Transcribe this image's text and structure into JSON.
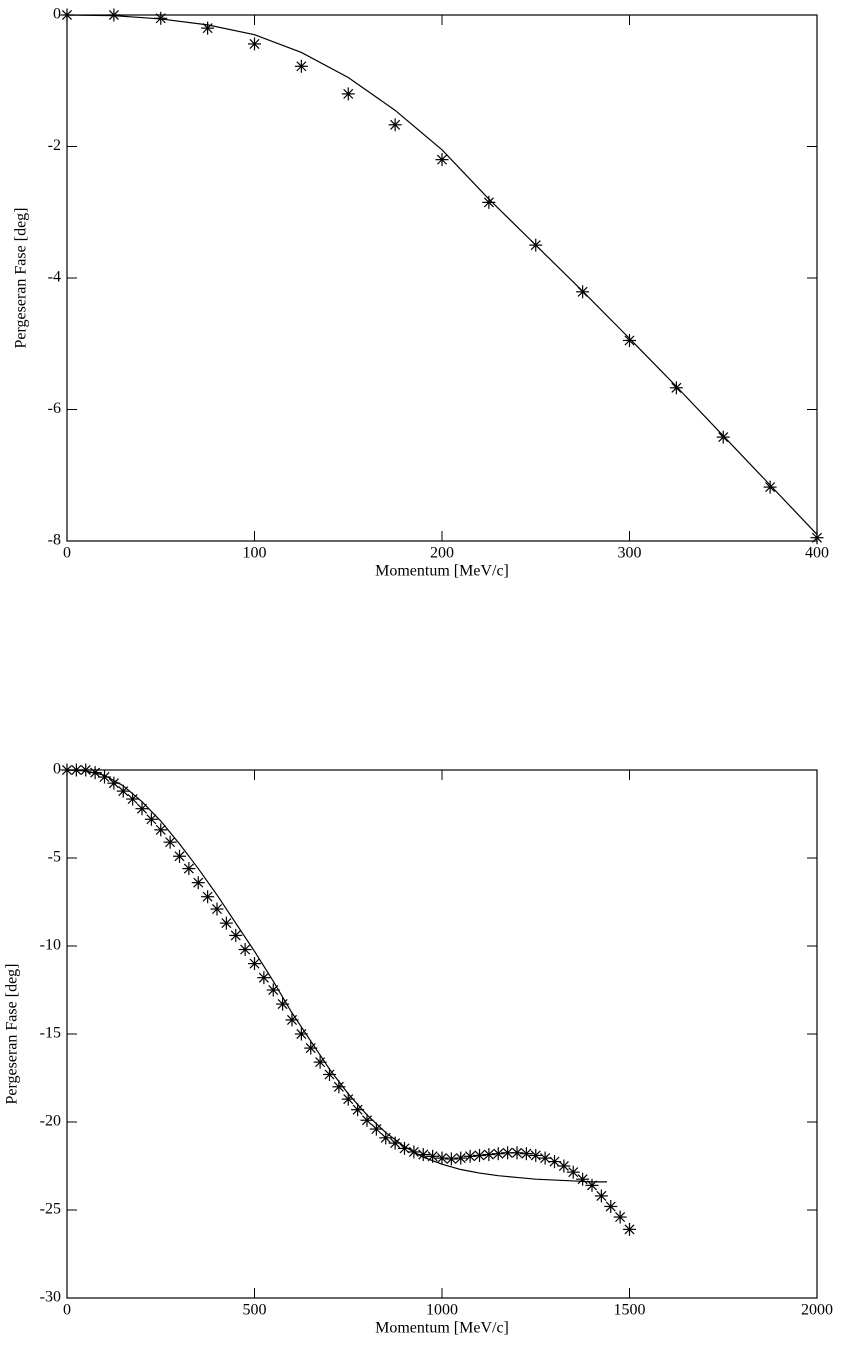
{
  "chart_data": [
    {
      "type": "line",
      "xlabel": "Momentum [MeV/c]",
      "ylabel": "Pergeseran Fase [deg]",
      "xlim": [
        0,
        400
      ],
      "ylim": [
        -8,
        0
      ],
      "xticks": [
        0,
        100,
        200,
        300,
        400
      ],
      "yticks": [
        0,
        -2,
        -4,
        -6,
        -8
      ],
      "series": [
        {
          "mode": "markers",
          "marker": "asterisk",
          "color": "#000000",
          "x": [
            0,
            25,
            50,
            75,
            100,
            125,
            150,
            175,
            200,
            225,
            250,
            275,
            300,
            325,
            350,
            375,
            400
          ],
          "values": [
            0,
            0,
            -0.05,
            -0.2,
            -0.44,
            -0.78,
            -1.2,
            -1.67,
            -2.2,
            -2.85,
            -3.5,
            -4.21,
            -4.95,
            -5.67,
            -6.42,
            -7.18,
            -7.95
          ]
        },
        {
          "mode": "line",
          "color": "#000000",
          "x": [
            0,
            25,
            50,
            75,
            100,
            125,
            150,
            175,
            200,
            225,
            250,
            275,
            300,
            325,
            350,
            375,
            400
          ],
          "values": [
            0,
            -0.01,
            -0.06,
            -0.15,
            -0.3,
            -0.57,
            -0.95,
            -1.45,
            -2.05,
            -2.8,
            -3.5,
            -4.2,
            -4.92,
            -5.65,
            -6.4,
            -7.15,
            -7.9
          ]
        }
      ]
    },
    {
      "type": "line",
      "xlabel": "Momentum [MeV/c]",
      "ylabel": "Pergeseran Fase [deg]",
      "xlim": [
        0,
        2000
      ],
      "ylim": [
        -30,
        0
      ],
      "xticks": [
        0,
        500,
        1000,
        1500,
        2000
      ],
      "yticks": [
        0,
        -5,
        -10,
        -15,
        -20,
        -25,
        -30
      ],
      "series": [
        {
          "mode": "markers",
          "marker": "asterisk",
          "color": "#000000",
          "x": [
            0,
            25,
            50,
            75,
            100,
            125,
            150,
            175,
            200,
            225,
            250,
            275,
            300,
            325,
            350,
            375,
            400,
            425,
            450,
            475,
            500,
            525,
            550,
            575,
            600,
            625,
            650,
            675,
            700,
            725,
            750,
            775,
            800,
            825,
            850,
            875,
            900,
            925,
            950,
            975,
            1000,
            1025,
            1050,
            1075,
            1100,
            1125,
            1150,
            1175,
            1200,
            1225,
            1250,
            1275,
            1300,
            1325,
            1350,
            1375,
            1400,
            1425,
            1450,
            1475,
            1500
          ],
          "values": [
            0,
            0,
            0,
            -0.15,
            -0.4,
            -0.75,
            -1.2,
            -1.65,
            -2.2,
            -2.8,
            -3.4,
            -4.1,
            -4.9,
            -5.6,
            -6.4,
            -7.2,
            -7.9,
            -8.7,
            -9.4,
            -10.2,
            -11,
            -11.8,
            -12.5,
            -13.3,
            -14.2,
            -15,
            -15.8,
            -16.6,
            -17.3,
            -18,
            -18.7,
            -19.3,
            -19.9,
            -20.4,
            -20.9,
            -21.2,
            -21.5,
            -21.7,
            -21.85,
            -21.95,
            -22.05,
            -22.1,
            -22.05,
            -21.95,
            -21.9,
            -21.85,
            -21.8,
            -21.75,
            -21.75,
            -21.8,
            -21.9,
            -22.05,
            -22.25,
            -22.5,
            -22.85,
            -23.25,
            -23.6,
            -24.2,
            -24.8,
            -25.4,
            -26.1
          ]
        },
        {
          "mode": "line",
          "color": "#000000",
          "x": [
            0,
            50,
            100,
            150,
            200,
            250,
            300,
            350,
            400,
            450,
            500,
            550,
            600,
            650,
            700,
            750,
            800,
            850,
            900,
            950,
            1000,
            1050,
            1100,
            1150,
            1200,
            1250,
            1300,
            1350,
            1400,
            1440
          ],
          "values": [
            0,
            -0.05,
            -0.3,
            -0.9,
            -1.8,
            -2.9,
            -4.2,
            -5.6,
            -7.1,
            -8.7,
            -10.3,
            -12,
            -13.8,
            -15.4,
            -17,
            -18.4,
            -19.6,
            -20.6,
            -21.4,
            -22,
            -22.4,
            -22.7,
            -22.9,
            -23.05,
            -23.15,
            -23.25,
            -23.3,
            -23.35,
            -23.4,
            -23.4
          ]
        }
      ]
    }
  ]
}
